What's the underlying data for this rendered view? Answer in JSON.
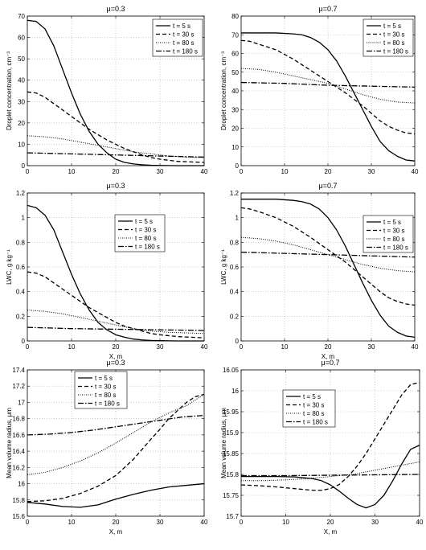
{
  "legend_labels": [
    "t = 5 s",
    "t = 30 s",
    "t = 80 s",
    "t = 180 s"
  ],
  "chart_data": [
    {
      "type": "line",
      "title": "μ=0.3",
      "xlabel": "",
      "ylabel": "Droplet concentration, cm⁻³",
      "xlim": [
        0,
        40
      ],
      "ylim": [
        0,
        70
      ],
      "xticks": [
        0,
        10,
        20,
        30,
        40
      ],
      "yticks": [
        0,
        10,
        20,
        30,
        40,
        50,
        60,
        70
      ],
      "grid": true,
      "legend_position": "top-right",
      "series": [
        {
          "name": "t = 5 s",
          "x": [
            0,
            2,
            4,
            6,
            8,
            10,
            12,
            14,
            16,
            18,
            20,
            22,
            24,
            26,
            28,
            30,
            34,
            40
          ],
          "y": [
            68,
            67.5,
            64,
            56,
            45,
            34,
            24,
            16,
            10,
            6,
            3,
            1.5,
            0.8,
            0.4,
            0.2,
            0.1,
            0,
            0
          ]
        },
        {
          "name": "t = 30 s",
          "x": [
            0,
            2,
            4,
            6,
            8,
            10,
            12,
            14,
            16,
            18,
            20,
            22,
            24,
            26,
            28,
            30,
            34,
            40
          ],
          "y": [
            34.5,
            34,
            32,
            29,
            26,
            23,
            20,
            17,
            14.5,
            12,
            10,
            8,
            6.5,
            5,
            3.8,
            3,
            2,
            1.5
          ]
        },
        {
          "name": "t = 80 s",
          "x": [
            0,
            4,
            8,
            12,
            16,
            20,
            24,
            28,
            32,
            36,
            40
          ],
          "y": [
            14,
            13.5,
            12.5,
            11,
            9.5,
            8,
            6.5,
            5.5,
            4.5,
            4,
            3.8
          ]
        },
        {
          "name": "t = 180 s",
          "x": [
            0,
            10,
            20,
            30,
            40
          ],
          "y": [
            6,
            5.5,
            5,
            4.5,
            4
          ]
        }
      ]
    },
    {
      "type": "line",
      "title": "μ=0.7",
      "xlabel": "",
      "ylabel": "Droplet concentration, cm⁻³",
      "xlim": [
        0,
        40
      ],
      "ylim": [
        0,
        80
      ],
      "xticks": [
        0,
        10,
        20,
        30,
        40
      ],
      "yticks": [
        0,
        10,
        20,
        30,
        40,
        50,
        60,
        70,
        80
      ],
      "grid": true,
      "legend_position": "top-right",
      "series": [
        {
          "name": "t = 5 s",
          "x": [
            0,
            4,
            8,
            12,
            14,
            16,
            18,
            20,
            22,
            24,
            26,
            28,
            30,
            32,
            34,
            36,
            38,
            40
          ],
          "y": [
            71,
            71,
            71,
            70.5,
            70,
            68.5,
            66,
            62,
            56,
            48,
            39,
            30,
            21,
            13,
            8,
            5,
            3,
            2.5
          ]
        },
        {
          "name": "t = 30 s",
          "x": [
            0,
            2,
            4,
            8,
            12,
            16,
            20,
            24,
            28,
            30,
            32,
            34,
            36,
            38,
            40
          ],
          "y": [
            67,
            66.5,
            65,
            62,
            57,
            51,
            45,
            39,
            32,
            28,
            24,
            21,
            19,
            17.5,
            17
          ]
        },
        {
          "name": "t = 80 s",
          "x": [
            0,
            4,
            8,
            12,
            16,
            20,
            24,
            28,
            32,
            36,
            40
          ],
          "y": [
            52,
            51.5,
            50,
            48,
            46,
            44,
            41,
            38,
            35.5,
            34,
            33.5
          ]
        },
        {
          "name": "t = 180 s",
          "x": [
            0,
            10,
            20,
            30,
            40
          ],
          "y": [
            44.5,
            44,
            43,
            42.5,
            42
          ]
        }
      ]
    },
    {
      "type": "line",
      "title": "μ=0.3",
      "xlabel": "X, m",
      "ylabel": "LWC, g kg⁻¹",
      "xlim": [
        0,
        40
      ],
      "ylim": [
        0,
        1.2
      ],
      "xticks": [
        0,
        10,
        20,
        30,
        40
      ],
      "yticks": [
        0,
        0.2,
        0.4,
        0.6,
        0.8,
        1.0,
        1.2
      ],
      "ytick_labels": [
        "0",
        "0.2",
        "0.4",
        "0.6",
        "0.8",
        "1",
        "1.2"
      ],
      "grid": true,
      "legend_position": "center-right",
      "series": [
        {
          "name": "t = 5 s",
          "x": [
            0,
            2,
            4,
            6,
            8,
            10,
            12,
            14,
            16,
            18,
            20,
            22,
            24,
            26,
            28,
            30,
            34,
            40
          ],
          "y": [
            1.1,
            1.08,
            1.02,
            0.9,
            0.72,
            0.54,
            0.38,
            0.25,
            0.15,
            0.09,
            0.05,
            0.03,
            0.015,
            0.008,
            0.004,
            0.002,
            0,
            0
          ]
        },
        {
          "name": "t = 30 s",
          "x": [
            0,
            2,
            4,
            6,
            8,
            10,
            12,
            14,
            16,
            18,
            20,
            22,
            24,
            26,
            28,
            30,
            34,
            40
          ],
          "y": [
            0.56,
            0.55,
            0.52,
            0.47,
            0.42,
            0.37,
            0.32,
            0.27,
            0.23,
            0.19,
            0.15,
            0.12,
            0.1,
            0.08,
            0.06,
            0.05,
            0.035,
            0.025
          ]
        },
        {
          "name": "t = 80 s",
          "x": [
            0,
            4,
            8,
            12,
            16,
            20,
            24,
            28,
            32,
            36,
            40
          ],
          "y": [
            0.25,
            0.24,
            0.22,
            0.19,
            0.16,
            0.13,
            0.1,
            0.08,
            0.07,
            0.065,
            0.06
          ]
        },
        {
          "name": "t = 180 s",
          "x": [
            0,
            10,
            20,
            30,
            40
          ],
          "y": [
            0.11,
            0.1,
            0.095,
            0.09,
            0.085
          ]
        }
      ]
    },
    {
      "type": "line",
      "title": "μ=0.7",
      "xlabel": "X, m",
      "ylabel": "LWC, g kg⁻¹",
      "xlim": [
        0,
        40
      ],
      "ylim": [
        0,
        1.2
      ],
      "xticks": [
        0,
        10,
        20,
        30,
        40
      ],
      "yticks": [
        0,
        0.2,
        0.4,
        0.6,
        0.8,
        1.0,
        1.2
      ],
      "ytick_labels": [
        "0",
        "0.2",
        "0.4",
        "0.6",
        "0.8",
        "1",
        "1.2"
      ],
      "grid": true,
      "legend_position": "top-right",
      "series": [
        {
          "name": "t = 5 s",
          "x": [
            0,
            4,
            8,
            12,
            14,
            16,
            18,
            20,
            22,
            24,
            26,
            28,
            30,
            32,
            34,
            36,
            38,
            40
          ],
          "y": [
            1.15,
            1.15,
            1.15,
            1.14,
            1.13,
            1.11,
            1.07,
            1.0,
            0.9,
            0.77,
            0.62,
            0.47,
            0.33,
            0.21,
            0.12,
            0.07,
            0.04,
            0.03
          ]
        },
        {
          "name": "t = 30 s",
          "x": [
            0,
            2,
            4,
            8,
            12,
            16,
            20,
            24,
            28,
            30,
            32,
            34,
            36,
            38,
            40
          ],
          "y": [
            1.08,
            1.07,
            1.05,
            1.0,
            0.93,
            0.84,
            0.74,
            0.64,
            0.52,
            0.46,
            0.4,
            0.35,
            0.32,
            0.3,
            0.29
          ]
        },
        {
          "name": "t = 80 s",
          "x": [
            0,
            4,
            8,
            12,
            16,
            20,
            24,
            28,
            32,
            36,
            40
          ],
          "y": [
            0.84,
            0.83,
            0.81,
            0.78,
            0.74,
            0.7,
            0.66,
            0.62,
            0.59,
            0.57,
            0.56
          ]
        },
        {
          "name": "t = 180 s",
          "x": [
            0,
            10,
            20,
            30,
            40
          ],
          "y": [
            0.72,
            0.71,
            0.7,
            0.69,
            0.68
          ]
        }
      ]
    },
    {
      "type": "line",
      "title": "μ=0.3",
      "xlabel": "X, m",
      "ylabel": "Mean volume radius, μm",
      "xlim": [
        0,
        40
      ],
      "ylim": [
        15.6,
        17.4
      ],
      "xticks": [
        0,
        10,
        20,
        30,
        40
      ],
      "yticks": [
        15.6,
        15.8,
        16.0,
        16.2,
        16.4,
        16.6,
        16.8,
        17.0,
        17.2,
        17.4
      ],
      "ytick_labels": [
        "15.6",
        "15.8",
        "16",
        "16.2",
        "16.4",
        "16.6",
        "16.8",
        "17",
        "17.2",
        "17.4"
      ],
      "grid": true,
      "legend_position": "top-left",
      "series": [
        {
          "name": "t = 5 s",
          "x": [
            0,
            4,
            8,
            12,
            16,
            20,
            24,
            28,
            32,
            36,
            40
          ],
          "y": [
            15.77,
            15.75,
            15.72,
            15.71,
            15.74,
            15.81,
            15.87,
            15.92,
            15.96,
            15.98,
            16.0
          ]
        },
        {
          "name": "t = 30 s",
          "x": [
            0,
            4,
            8,
            12,
            16,
            20,
            24,
            28,
            30,
            32,
            34,
            36,
            38,
            40
          ],
          "y": [
            15.78,
            15.79,
            15.82,
            15.88,
            15.97,
            16.1,
            16.3,
            16.55,
            16.67,
            16.8,
            16.9,
            17.0,
            17.07,
            17.1
          ]
        },
        {
          "name": "t = 80 s",
          "x": [
            0,
            4,
            8,
            12,
            16,
            20,
            24,
            28,
            32,
            36,
            40
          ],
          "y": [
            16.11,
            16.14,
            16.2,
            16.28,
            16.38,
            16.5,
            16.63,
            16.76,
            16.87,
            16.96,
            17.1
          ]
        },
        {
          "name": "t = 180 s",
          "x": [
            0,
            5,
            10,
            15,
            20,
            25,
            30,
            35,
            40
          ],
          "y": [
            16.6,
            16.61,
            16.63,
            16.66,
            16.7,
            16.74,
            16.78,
            16.82,
            16.84
          ]
        }
      ]
    },
    {
      "type": "line",
      "title": "μ=0.7",
      "xlabel": "X, m",
      "ylabel": "Mean volume radius, μm",
      "xlim": [
        0,
        40
      ],
      "ylim": [
        15.7,
        16.05
      ],
      "xticks": [
        0,
        10,
        20,
        30,
        40
      ],
      "yticks": [
        15.7,
        15.75,
        15.8,
        15.85,
        15.9,
        15.95,
        16.0,
        16.05
      ],
      "ytick_labels": [
        "15.7",
        "15.75",
        "15.8",
        "15.85",
        "15.9",
        "15.95",
        "16",
        "16.05"
      ],
      "grid": true,
      "legend_position": "top-center",
      "series": [
        {
          "name": "t = 5 s",
          "x": [
            0,
            4,
            8,
            12,
            16,
            18,
            20,
            22,
            24,
            26,
            28,
            30,
            32,
            34,
            36,
            38,
            40
          ],
          "y": [
            15.795,
            15.795,
            15.795,
            15.794,
            15.79,
            15.785,
            15.775,
            15.76,
            15.743,
            15.728,
            15.72,
            15.728,
            15.75,
            15.785,
            15.825,
            15.86,
            15.87
          ]
        },
        {
          "name": "t = 30 s",
          "x": [
            0,
            4,
            8,
            12,
            16,
            18,
            20,
            22,
            24,
            26,
            28,
            30,
            32,
            34,
            36,
            38,
            40
          ],
          "y": [
            15.775,
            15.773,
            15.77,
            15.766,
            15.762,
            15.762,
            15.766,
            15.776,
            15.795,
            15.82,
            15.85,
            15.885,
            15.92,
            15.955,
            15.99,
            16.015,
            16.02
          ]
        },
        {
          "name": "t = 80 s",
          "x": [
            0,
            5,
            10,
            15,
            20,
            25,
            30,
            35,
            40
          ],
          "y": [
            15.785,
            15.785,
            15.787,
            15.79,
            15.795,
            15.8,
            15.81,
            15.82,
            15.83
          ]
        },
        {
          "name": "t = 180 s",
          "x": [
            0,
            10,
            20,
            30,
            40
          ],
          "y": [
            15.797,
            15.797,
            15.798,
            15.799,
            15.8
          ]
        }
      ]
    }
  ]
}
